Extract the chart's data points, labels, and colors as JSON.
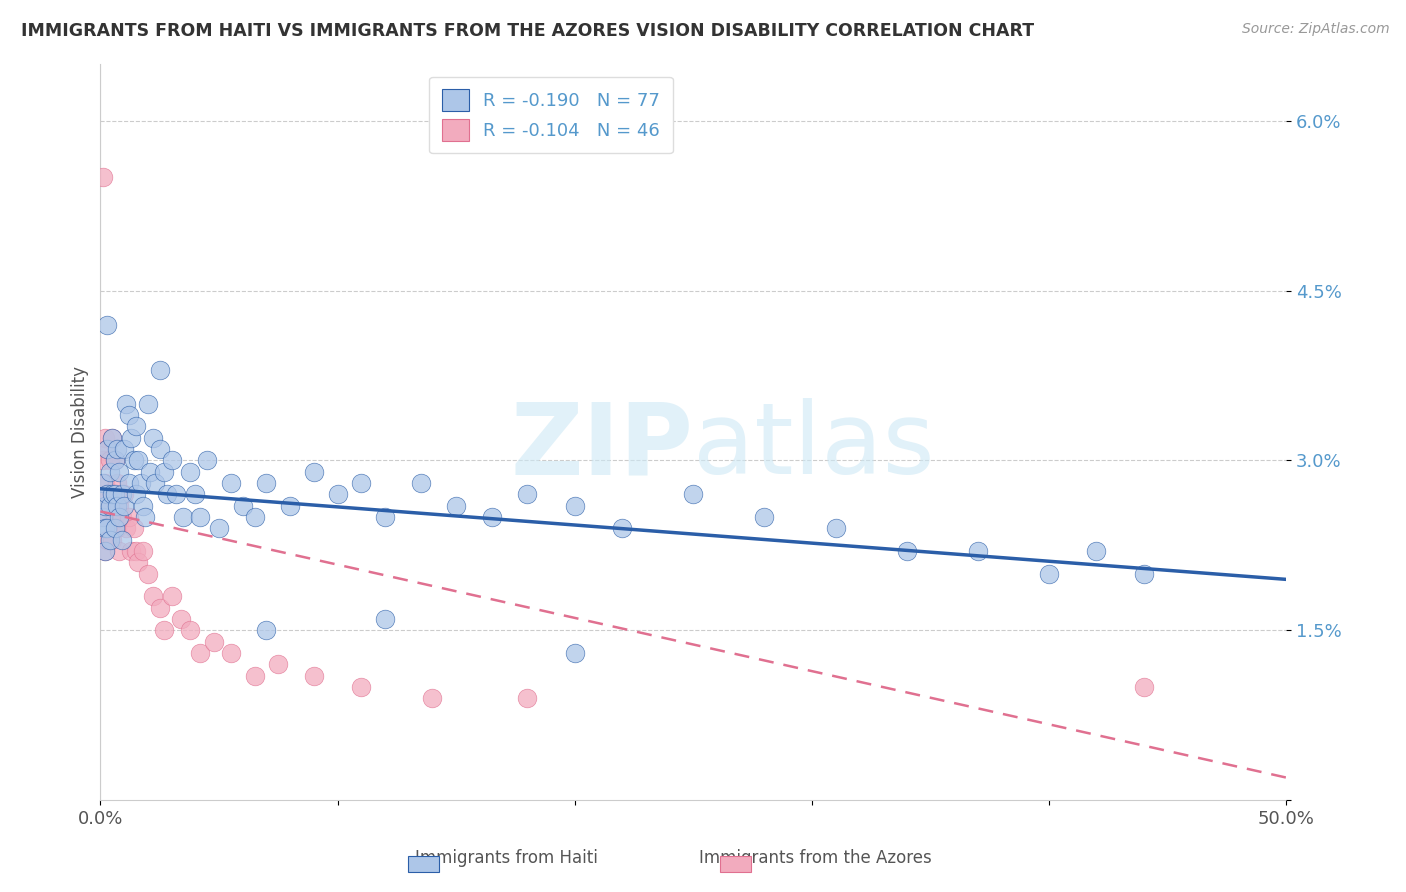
{
  "title": "IMMIGRANTS FROM HAITI VS IMMIGRANTS FROM THE AZORES VISION DISABILITY CORRELATION CHART",
  "source": "Source: ZipAtlas.com",
  "ylabel": "Vision Disability",
  "legend_label1": "Immigrants from Haiti",
  "legend_label2": "Immigrants from the Azores",
  "R1": -0.19,
  "N1": 77,
  "R2": -0.104,
  "N2": 46,
  "xlim": [
    0.0,
    0.5
  ],
  "ylim": [
    0.0,
    0.065
  ],
  "color_haiti": "#adc6e8",
  "color_azores": "#f2abbe",
  "line_color_haiti": "#2b5ea8",
  "line_color_azores": "#e07090",
  "background_color": "#ffffff",
  "watermark_color": "#cde8f5",
  "haiti_x": [
    0.001,
    0.001,
    0.002,
    0.002,
    0.002,
    0.003,
    0.003,
    0.003,
    0.004,
    0.004,
    0.004,
    0.005,
    0.005,
    0.006,
    0.006,
    0.006,
    0.007,
    0.007,
    0.008,
    0.008,
    0.009,
    0.009,
    0.01,
    0.01,
    0.011,
    0.012,
    0.012,
    0.013,
    0.014,
    0.015,
    0.015,
    0.016,
    0.017,
    0.018,
    0.019,
    0.02,
    0.021,
    0.022,
    0.023,
    0.025,
    0.027,
    0.028,
    0.03,
    0.032,
    0.035,
    0.038,
    0.04,
    0.042,
    0.045,
    0.05,
    0.055,
    0.06,
    0.065,
    0.07,
    0.08,
    0.09,
    0.1,
    0.11,
    0.12,
    0.135,
    0.15,
    0.165,
    0.18,
    0.2,
    0.22,
    0.25,
    0.28,
    0.31,
    0.34,
    0.37,
    0.4,
    0.42,
    0.44,
    0.003,
    0.025,
    0.12,
    0.07,
    0.2
  ],
  "haiti_y": [
    0.028,
    0.025,
    0.026,
    0.024,
    0.022,
    0.031,
    0.027,
    0.024,
    0.029,
    0.026,
    0.023,
    0.032,
    0.027,
    0.03,
    0.027,
    0.024,
    0.031,
    0.026,
    0.029,
    0.025,
    0.027,
    0.023,
    0.031,
    0.026,
    0.035,
    0.034,
    0.028,
    0.032,
    0.03,
    0.033,
    0.027,
    0.03,
    0.028,
    0.026,
    0.025,
    0.035,
    0.029,
    0.032,
    0.028,
    0.031,
    0.029,
    0.027,
    0.03,
    0.027,
    0.025,
    0.029,
    0.027,
    0.025,
    0.03,
    0.024,
    0.028,
    0.026,
    0.025,
    0.028,
    0.026,
    0.029,
    0.027,
    0.028,
    0.025,
    0.028,
    0.026,
    0.025,
    0.027,
    0.026,
    0.024,
    0.027,
    0.025,
    0.024,
    0.022,
    0.022,
    0.02,
    0.022,
    0.02,
    0.042,
    0.038,
    0.016,
    0.015,
    0.013
  ],
  "azores_x": [
    0.001,
    0.001,
    0.001,
    0.002,
    0.002,
    0.002,
    0.003,
    0.003,
    0.003,
    0.004,
    0.004,
    0.005,
    0.005,
    0.005,
    0.006,
    0.006,
    0.007,
    0.007,
    0.008,
    0.008,
    0.009,
    0.01,
    0.011,
    0.012,
    0.013,
    0.014,
    0.015,
    0.016,
    0.018,
    0.02,
    0.022,
    0.025,
    0.027,
    0.03,
    0.034,
    0.038,
    0.042,
    0.048,
    0.055,
    0.065,
    0.075,
    0.09,
    0.11,
    0.14,
    0.18,
    0.44
  ],
  "azores_y": [
    0.055,
    0.03,
    0.025,
    0.032,
    0.028,
    0.022,
    0.031,
    0.027,
    0.023,
    0.03,
    0.026,
    0.032,
    0.027,
    0.023,
    0.03,
    0.025,
    0.028,
    0.024,
    0.026,
    0.022,
    0.025,
    0.027,
    0.024,
    0.025,
    0.022,
    0.024,
    0.022,
    0.021,
    0.022,
    0.02,
    0.018,
    0.017,
    0.015,
    0.018,
    0.016,
    0.015,
    0.013,
    0.014,
    0.013,
    0.011,
    0.012,
    0.011,
    0.01,
    0.009,
    0.009,
    0.01
  ],
  "haiti_line_x": [
    0.0,
    0.5
  ],
  "haiti_line_y": [
    0.0275,
    0.0195
  ],
  "azores_line_x": [
    0.0,
    0.5
  ],
  "azores_line_y": [
    0.0255,
    0.002
  ]
}
